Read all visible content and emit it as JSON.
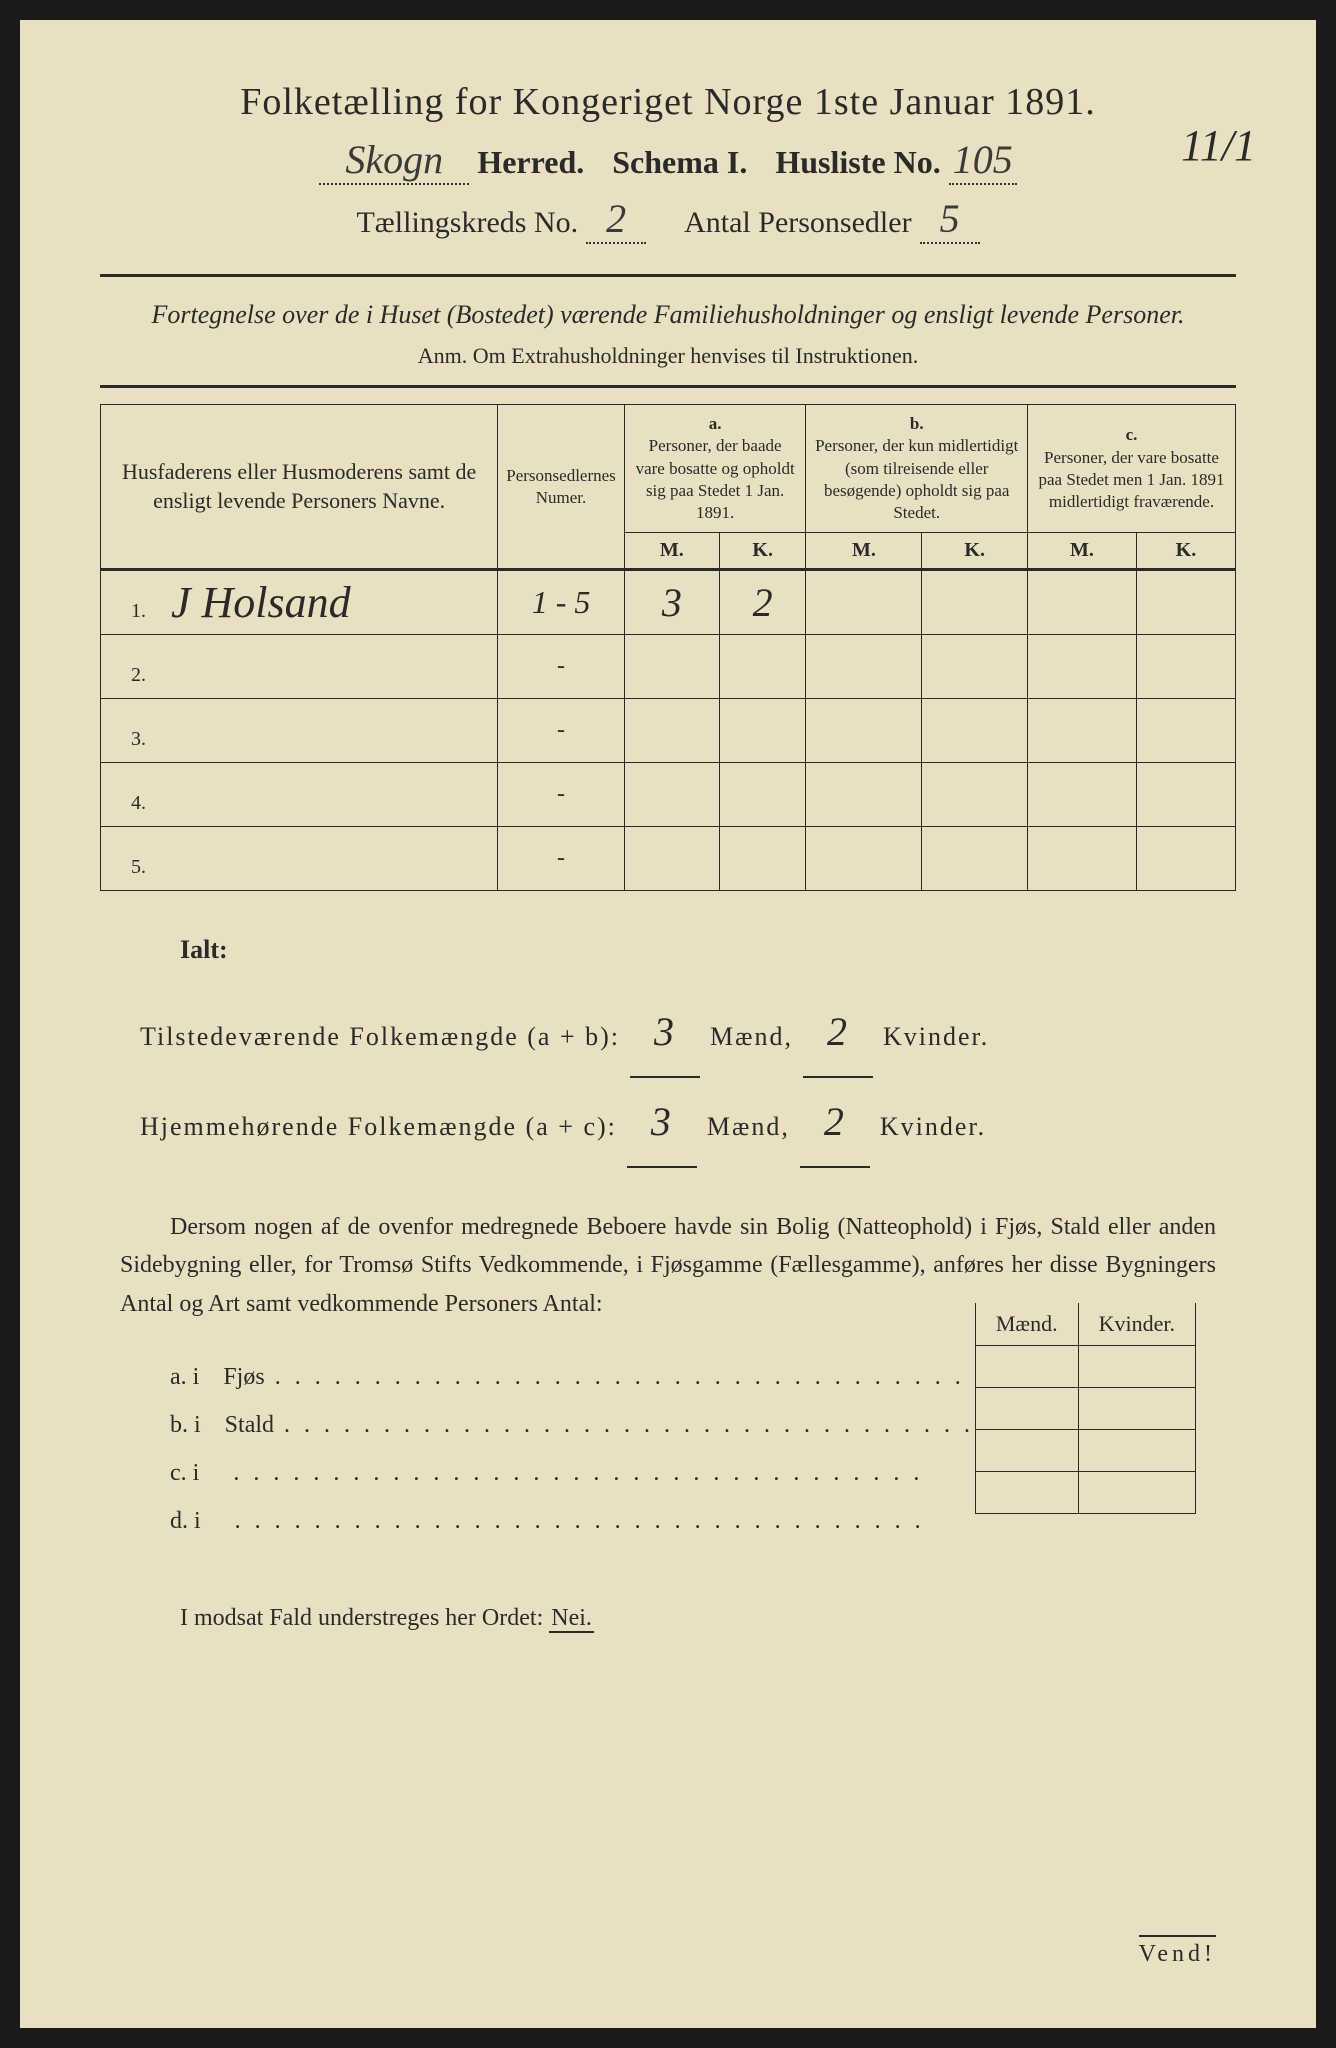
{
  "header": {
    "title": "Folketælling for Kongeriget Norge 1ste Januar 1891.",
    "herred_value": "Skogn",
    "herred_label": "Herred.",
    "schema_label": "Schema I.",
    "husliste_label": "Husliste No.",
    "husliste_value": "105",
    "kreds_label": "Tællingskreds No.",
    "kreds_value": "2",
    "antal_label": "Antal Personsedler",
    "antal_value": "5",
    "corner_note": "11/1"
  },
  "section1": {
    "title": "Fortegnelse over de i Huset (Bostedet) værende Familiehusholdninger og ensligt levende Personer.",
    "anm": "Anm. Om Extrahusholdninger henvises til Instruktionen."
  },
  "table": {
    "col_name_header": "Husfaderens eller Husmoderens samt de ensligt levende Personers Navne.",
    "col_numer_header": "Personsedlernes Numer.",
    "col_a_label": "a.",
    "col_a_header": "Personer, der baade vare bosatte og opholdt sig paa Stedet 1 Jan. 1891.",
    "col_b_label": "b.",
    "col_b_header": "Personer, der kun midlertidigt (som tilreisende eller besøgende) opholdt sig paa Stedet.",
    "col_c_label": "c.",
    "col_c_header": "Personer, der vare bosatte paa Stedet men 1 Jan. 1891 midlertidigt fraværende.",
    "m_label": "M.",
    "k_label": "K.",
    "rows": [
      {
        "num": "1.",
        "name": "J Holsand",
        "numer": "1 - 5",
        "a_m": "3",
        "a_k": "2",
        "b_m": "",
        "b_k": "",
        "c_m": "",
        "c_k": ""
      },
      {
        "num": "2.",
        "name": "",
        "numer": "-",
        "a_m": "",
        "a_k": "",
        "b_m": "",
        "b_k": "",
        "c_m": "",
        "c_k": ""
      },
      {
        "num": "3.",
        "name": "",
        "numer": "-",
        "a_m": "",
        "a_k": "",
        "b_m": "",
        "b_k": "",
        "c_m": "",
        "c_k": ""
      },
      {
        "num": "4.",
        "name": "",
        "numer": "-",
        "a_m": "",
        "a_k": "",
        "b_m": "",
        "b_k": "",
        "c_m": "",
        "c_k": ""
      },
      {
        "num": "5.",
        "name": "",
        "numer": "-",
        "a_m": "",
        "a_k": "",
        "b_m": "",
        "b_k": "",
        "c_m": "",
        "c_k": ""
      }
    ]
  },
  "totals": {
    "ialt_label": "Ialt:",
    "line1_label": "Tilstedeværende Folkemængde (a + b):",
    "line1_m": "3",
    "line1_k": "2",
    "line2_label": "Hjemmehørende Folkemængde (a + c):",
    "line2_m": "3",
    "line2_k": "2",
    "maend": "Mænd,",
    "kvinder": "Kvinder."
  },
  "note": {
    "text": "Dersom nogen af de ovenfor medregnede Beboere havde sin Bolig (Natteophold) i Fjøs, Stald eller anden Sidebygning eller, for Tromsø Stifts Vedkommende, i Fjøsgamme (Fællesgamme), anføres her disse Bygningers Antal og Art samt vedkommende Personers Antal:"
  },
  "buildings": {
    "maend_header": "Mænd.",
    "kvinder_header": "Kvinder.",
    "rows": [
      {
        "label": "a.  i",
        "name": "Fjøs"
      },
      {
        "label": "b.  i",
        "name": "Stald"
      },
      {
        "label": "c.  i",
        "name": ""
      },
      {
        "label": "d.  i",
        "name": ""
      }
    ]
  },
  "nei": {
    "text": "I modsat Fald understreges her Ordet:",
    "word": "Nei."
  },
  "vend": "Vend!",
  "colors": {
    "paper": "#e8e0c0",
    "ink": "#2a2a2a",
    "background": "#1a1a1a"
  }
}
